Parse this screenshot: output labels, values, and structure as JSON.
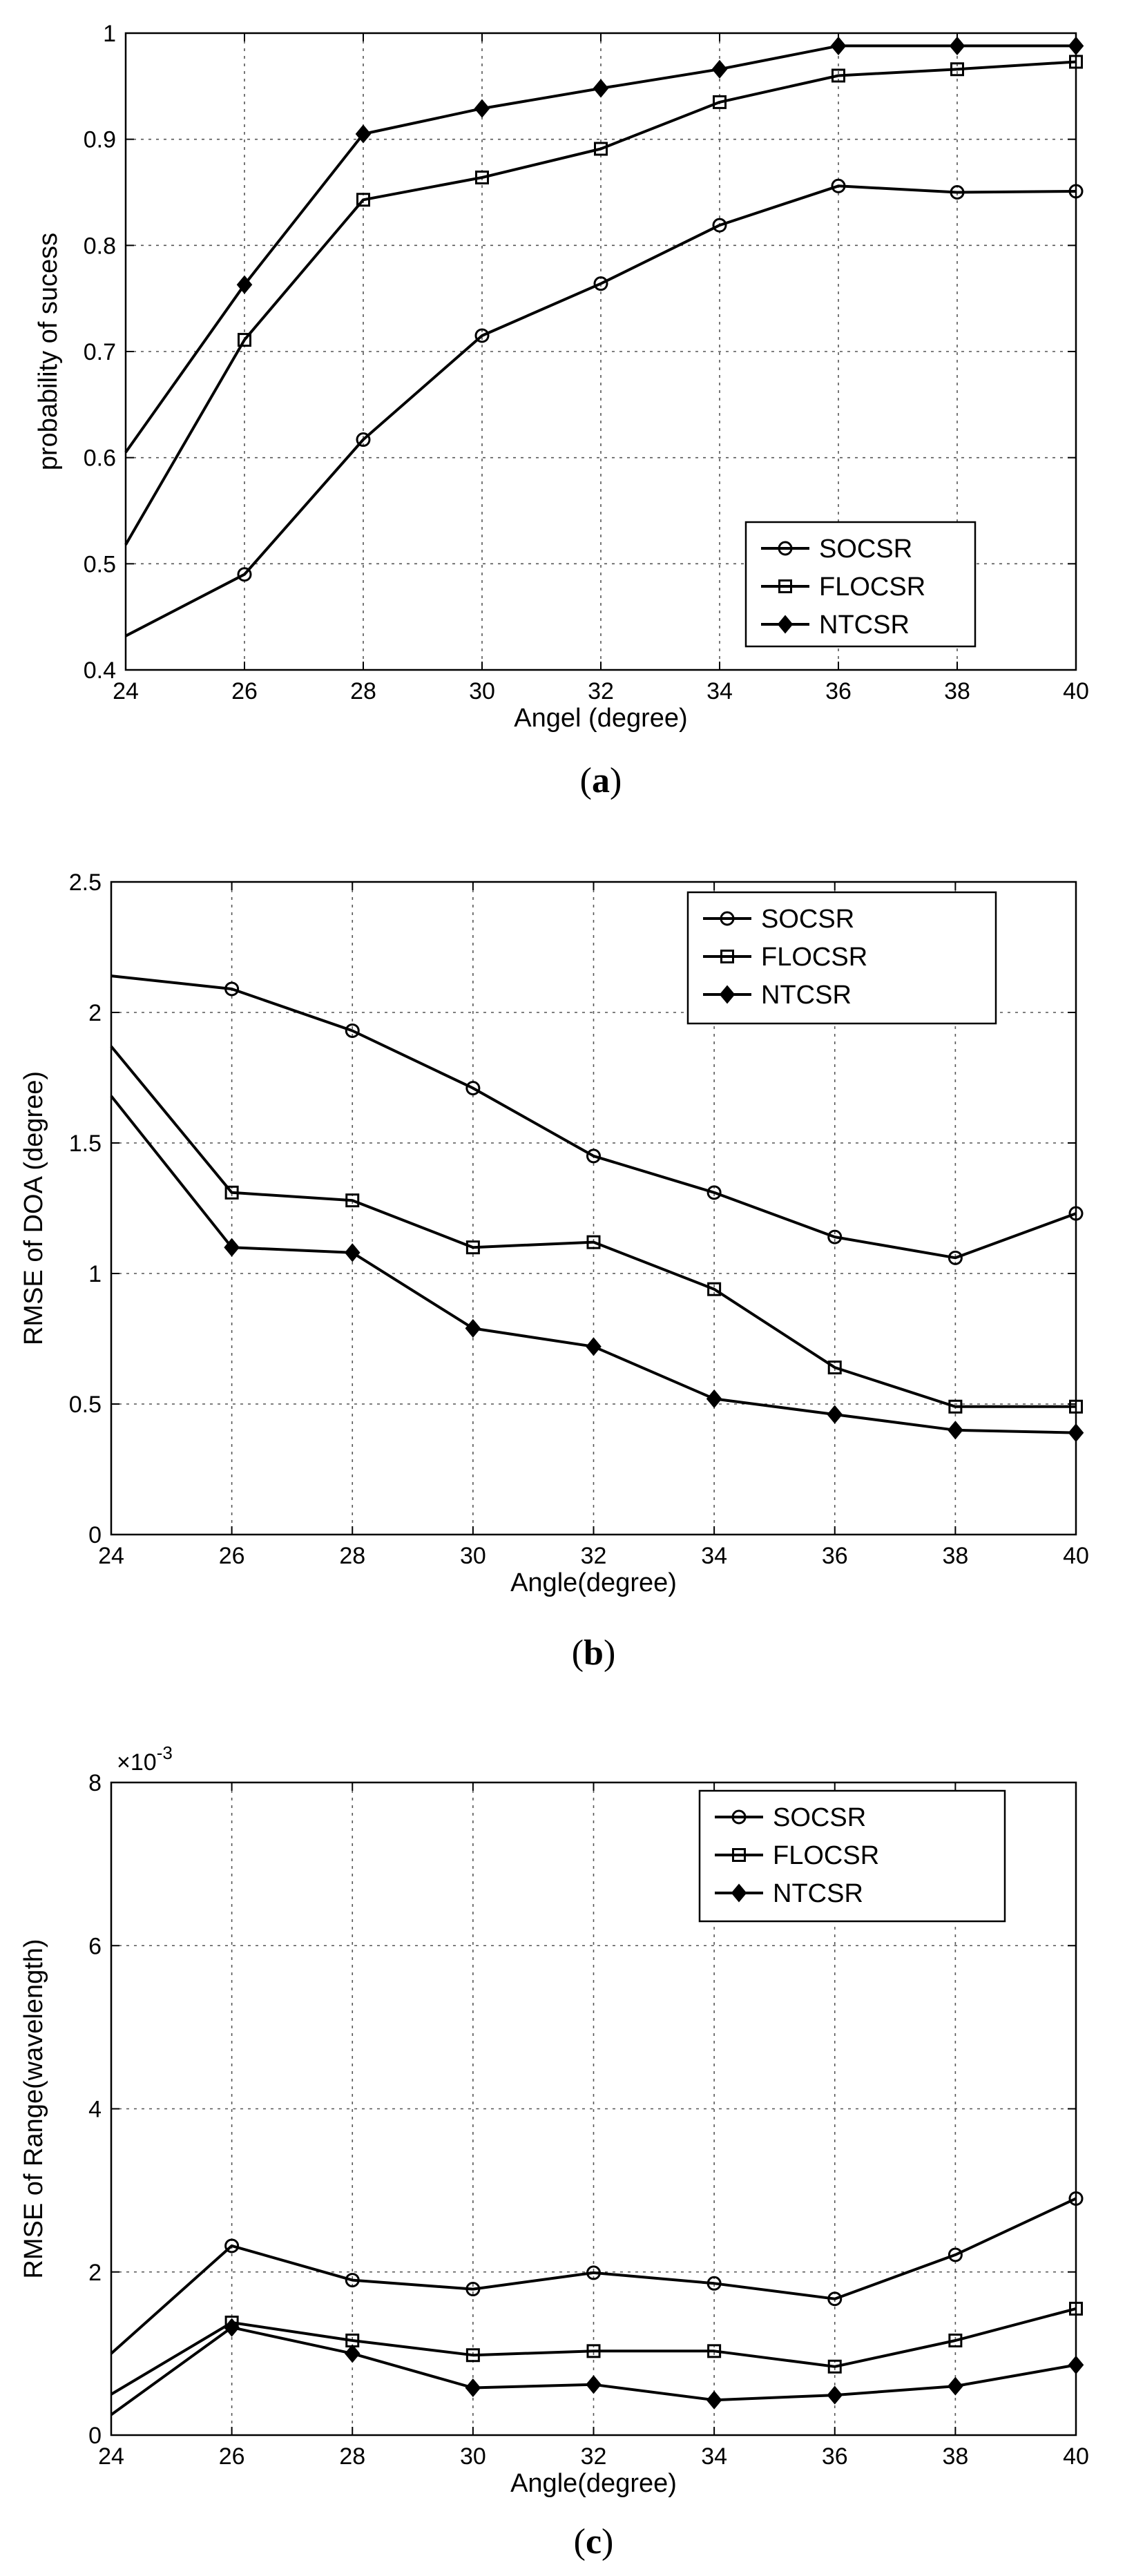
{
  "colors": {
    "line": "#000000",
    "grid": "#555555",
    "background": "#ffffff"
  },
  "chart_data": [
    {
      "id": "a",
      "type": "line",
      "caption": "a",
      "title": "",
      "xlabel": "Angel (degree)",
      "ylabel": "probability of sucess",
      "x": [
        24,
        26,
        28,
        30,
        32,
        34,
        36,
        38,
        40
      ],
      "xlim": [
        24,
        40
      ],
      "ylim": [
        0.4,
        1
      ],
      "xticks": [
        "24",
        "26",
        "28",
        "30",
        "32",
        "34",
        "36",
        "38",
        "40"
      ],
      "yticks": [
        "0.4",
        "0.5",
        "0.6",
        "0.7",
        "0.8",
        "0.9",
        "1"
      ],
      "ytick_values": [
        0.4,
        0.5,
        0.6,
        0.7,
        0.8,
        0.9,
        1
      ],
      "grid": true,
      "legend_position": "bottom-right",
      "series": [
        {
          "name": "SOCSR",
          "marker": "circle",
          "values": [
            0.432,
            0.49,
            0.617,
            0.715,
            0.764,
            0.819,
            0.856,
            0.85,
            0.851
          ]
        },
        {
          "name": "FLOCSR",
          "marker": "square",
          "values": [
            0.518,
            0.711,
            0.843,
            0.864,
            0.891,
            0.935,
            0.96,
            0.966,
            0.973
          ]
        },
        {
          "name": "NTCSR",
          "marker": "diamond",
          "values": [
            0.605,
            0.763,
            0.905,
            0.929,
            0.948,
            0.966,
            0.988,
            0.988,
            0.988
          ]
        }
      ]
    },
    {
      "id": "b",
      "type": "line",
      "caption": "b",
      "title": "",
      "xlabel": "Angle(degree)",
      "ylabel": "RMSE of DOA (degree)",
      "x": [
        24,
        26,
        28,
        30,
        32,
        34,
        36,
        38,
        40
      ],
      "xlim": [
        24,
        40
      ],
      "ylim": [
        0,
        2.5
      ],
      "xticks": [
        "24",
        "26",
        "28",
        "30",
        "32",
        "34",
        "36",
        "38",
        "40"
      ],
      "yticks": [
        "0",
        "0.5",
        "1",
        "1.5",
        "2",
        "2.5"
      ],
      "ytick_values": [
        0,
        0.5,
        1,
        1.5,
        2,
        2.5
      ],
      "grid": true,
      "legend_position": "top-right",
      "series": [
        {
          "name": "SOCSR",
          "marker": "circle",
          "values": [
            2.14,
            2.09,
            1.93,
            1.71,
            1.45,
            1.31,
            1.14,
            1.06,
            1.23
          ]
        },
        {
          "name": "FLOCSR",
          "marker": "square",
          "values": [
            1.87,
            1.31,
            1.28,
            1.1,
            1.12,
            0.94,
            0.64,
            0.49,
            0.49
          ]
        },
        {
          "name": "NTCSR",
          "marker": "diamond",
          "values": [
            1.68,
            1.1,
            1.08,
            0.79,
            0.72,
            0.52,
            0.46,
            0.4,
            0.39
          ]
        }
      ]
    },
    {
      "id": "c",
      "type": "line",
      "caption": "c",
      "title": "",
      "xlabel": "Angle(degree)",
      "ylabel": "RMSE of Range(wavelength)",
      "y_multiplier": "×10",
      "y_multiplier_exponent": "-3",
      "x": [
        24,
        26,
        28,
        30,
        32,
        34,
        36,
        38,
        40
      ],
      "xlim": [
        24,
        40
      ],
      "ylim": [
        0,
        8
      ],
      "xticks": [
        "24",
        "26",
        "28",
        "30",
        "32",
        "34",
        "36",
        "38",
        "40"
      ],
      "yticks": [
        "0",
        "2",
        "4",
        "6",
        "8"
      ],
      "ytick_values": [
        0,
        2,
        4,
        6,
        8
      ],
      "grid": true,
      "legend_position": "top-right",
      "series": [
        {
          "name": "SOCSR",
          "marker": "circle",
          "values": [
            1.0,
            2.32,
            1.9,
            1.79,
            1.99,
            1.86,
            1.67,
            2.21,
            2.9
          ]
        },
        {
          "name": "FLOCSR",
          "marker": "square",
          "values": [
            0.5,
            1.38,
            1.16,
            0.98,
            1.03,
            1.03,
            0.84,
            1.16,
            1.55
          ]
        },
        {
          "name": "NTCSR",
          "marker": "diamond",
          "values": [
            0.25,
            1.32,
            1.0,
            0.58,
            0.62,
            0.43,
            0.49,
            0.6,
            0.86
          ]
        }
      ]
    }
  ]
}
